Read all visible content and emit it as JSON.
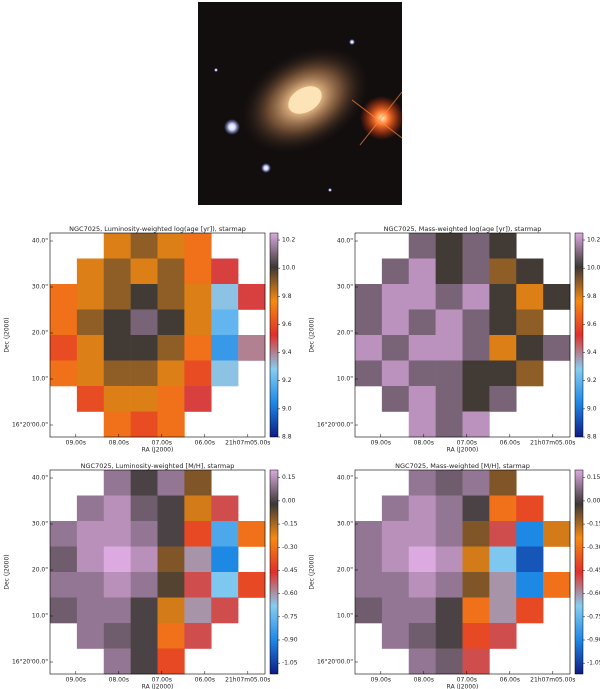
{
  "chart_data": [
    {
      "type": "heatmap",
      "title": "NGC7025, Luminosity-weighted log(age [yr]), starmap",
      "xlabel": "RA (J2000)",
      "ylabel": "Dec (J2000)",
      "xtick_labels": [
        "09.00s",
        "08.00s",
        "07.00s",
        "06.00s",
        "21h07m05.00s"
      ],
      "ytick_labels": [
        "40.0\"",
        "30.0\"",
        "20.0\"",
        "10.0\"",
        "16°20'00.0\""
      ],
      "zlim": [
        8.8,
        10.25
      ],
      "zticks": [
        10.2,
        {
          "value": 10.0,
          "label": "10.0"
        },
        9.8,
        9.6,
        9.4,
        9.2,
        {
          "value": 9.0,
          "label": "9.0"
        },
        8.8
      ],
      "colormap": [
        "#0d1b84",
        "#1e88e5",
        "#86cdf2",
        "#e0302a",
        "#f68a12",
        "#3c3836",
        "#dcaae0"
      ],
      "values": [
        [
          null,
          null,
          9.8,
          9.9,
          9.8,
          9.7,
          null,
          null
        ],
        [
          null,
          9.8,
          9.9,
          9.8,
          9.9,
          9.7,
          9.5,
          null
        ],
        [
          9.7,
          9.8,
          9.9,
          10.0,
          9.9,
          9.8,
          9.3,
          9.5
        ],
        [
          9.7,
          9.9,
          10.0,
          10.1,
          10.0,
          9.8,
          9.2,
          null
        ],
        [
          9.6,
          9.8,
          10.0,
          10.0,
          9.9,
          9.7,
          9.1,
          9.4
        ],
        [
          9.7,
          9.8,
          9.9,
          9.9,
          9.8,
          9.6,
          9.3,
          null
        ],
        [
          null,
          9.6,
          9.8,
          9.8,
          9.7,
          9.5,
          null,
          null
        ],
        [
          null,
          null,
          9.7,
          9.6,
          9.7,
          null,
          null,
          null
        ]
      ]
    },
    {
      "type": "heatmap",
      "title": "NGC7025, Mass-weighted log(age [yr]), starmap",
      "xlabel": "RA (J2000)",
      "ylabel": "Dec (J2000)",
      "xtick_labels": [
        "09.00s",
        "08.00s",
        "07.00s",
        "06.00s",
        "21h07m05.00s"
      ],
      "ytick_labels": [
        "40.0\"",
        "30.0\"",
        "20.0\"",
        "10.0\"",
        "16°20'00.0\""
      ],
      "zlim": [
        8.8,
        10.25
      ],
      "zticks": [
        10.2,
        {
          "value": 10.0,
          "label": "10.0"
        },
        9.8,
        9.6,
        9.4,
        9.2,
        {
          "value": 9.0,
          "label": "9.0"
        },
        8.8
      ],
      "colormap": [
        "#0d1b84",
        "#1e88e5",
        "#86cdf2",
        "#e0302a",
        "#f68a12",
        "#3c3836",
        "#dcaae0"
      ],
      "values": [
        [
          null,
          null,
          10.1,
          10.0,
          10.1,
          10.0,
          null,
          null
        ],
        [
          null,
          10.1,
          10.2,
          10.0,
          10.1,
          9.9,
          10.0,
          null
        ],
        [
          10.1,
          10.2,
          10.2,
          10.1,
          10.2,
          10.0,
          9.8,
          10.0
        ],
        [
          10.1,
          10.2,
          10.1,
          10.2,
          10.1,
          10.0,
          9.9,
          null
        ],
        [
          10.2,
          10.1,
          10.2,
          10.2,
          10.1,
          9.8,
          10.0,
          10.1
        ],
        [
          10.1,
          10.2,
          10.1,
          10.1,
          10.0,
          10.0,
          9.9,
          null
        ],
        [
          null,
          10.1,
          10.2,
          10.1,
          10.0,
          10.1,
          null,
          null
        ],
        [
          null,
          null,
          10.2,
          10.1,
          10.2,
          null,
          null,
          null
        ]
      ]
    },
    {
      "type": "heatmap",
      "title": "NGC7025, Luminosity-weighted [M/H], starmap",
      "xlabel": "RA (J2000)",
      "ylabel": "Dec (J2000)",
      "xtick_labels": [
        "09.00s",
        "08.00s",
        "07.00s",
        "06.00s",
        "21h07m05.00s"
      ],
      "ytick_labels": [
        "40.0\"",
        "30.0\"",
        "20.0\"",
        "10.0\"",
        "16°20'00.0\""
      ],
      "zlim": [
        -1.12,
        0.2
      ],
      "zticks": [
        0.15,
        {
          "value": 0,
          "label": "0.00"
        },
        -0.15,
        {
          "value": -0.3,
          "label": "-0.30"
        },
        -0.45,
        {
          "value": -0.6,
          "label": "-0.60"
        },
        -0.75,
        {
          "value": -0.9,
          "label": "-0.90"
        },
        -1.05
      ],
      "colormap": [
        "#0d1b84",
        "#1e88e5",
        "#86cdf2",
        "#e0302a",
        "#f68a12",
        "#3c3836",
        "#dcaae0"
      ],
      "values": [
        [
          null,
          null,
          0.1,
          0.0,
          0.1,
          -0.1,
          null,
          null
        ],
        [
          null,
          0.1,
          0.15,
          0.05,
          0.0,
          -0.2,
          -0.5,
          null
        ],
        [
          0.1,
          0.15,
          0.15,
          0.1,
          0.0,
          -0.4,
          -0.8,
          -0.3
        ],
        [
          0.05,
          0.15,
          0.2,
          0.15,
          -0.1,
          -0.6,
          -0.9,
          null
        ],
        [
          0.1,
          0.1,
          0.15,
          0.1,
          -0.05,
          -0.5,
          -0.7,
          -0.4
        ],
        [
          0.05,
          0.1,
          0.1,
          0.0,
          -0.2,
          -0.6,
          -0.5,
          null
        ],
        [
          null,
          0.1,
          0.05,
          0.0,
          -0.3,
          -0.5,
          null,
          null
        ],
        [
          null,
          null,
          0.1,
          0.0,
          -0.4,
          null,
          null,
          null
        ]
      ]
    },
    {
      "type": "heatmap",
      "title": "NGC7025, Mass-weighted [M/H], starmap",
      "xlabel": "RA (J2000)",
      "ylabel": "Dec (J2000)",
      "xtick_labels": [
        "09.00s",
        "08.00s",
        "07.00s",
        "06.00s",
        "21h07m05.00s"
      ],
      "ytick_labels": [
        "40.0\"",
        "30.0\"",
        "20.0\"",
        "10.0\"",
        "16°20'00.0\""
      ],
      "zlim": [
        -1.12,
        0.2
      ],
      "zticks": [
        0.15,
        {
          "value": 0,
          "label": "0.00"
        },
        -0.15,
        {
          "value": -0.3,
          "label": "-0.30"
        },
        -0.45,
        {
          "value": -0.6,
          "label": "-0.60"
        },
        -0.75,
        {
          "value": -0.9,
          "label": "-0.90"
        },
        -1.05
      ],
      "colormap": [
        "#0d1b84",
        "#1e88e5",
        "#86cdf2",
        "#e0302a",
        "#f68a12",
        "#3c3836",
        "#dcaae0"
      ],
      "values": [
        [
          null,
          null,
          0.1,
          0.05,
          0.1,
          -0.1,
          null,
          null
        ],
        [
          null,
          0.1,
          0.15,
          0.1,
          0.0,
          -0.3,
          -0.4,
          null
        ],
        [
          0.1,
          0.15,
          0.15,
          0.1,
          -0.1,
          -0.5,
          -0.9,
          -0.2
        ],
        [
          0.1,
          0.15,
          0.2,
          0.15,
          -0.2,
          -0.7,
          -1.0,
          null
        ],
        [
          0.1,
          0.1,
          0.15,
          0.1,
          -0.1,
          -0.6,
          -0.9,
          -0.3
        ],
        [
          0.05,
          0.1,
          0.1,
          0.0,
          -0.3,
          -0.6,
          -0.4,
          null
        ],
        [
          null,
          0.1,
          0.05,
          0.0,
          -0.4,
          -0.5,
          null,
          null
        ],
        [
          null,
          null,
          0.1,
          0.05,
          -0.5,
          null,
          null,
          null
        ]
      ]
    }
  ]
}
